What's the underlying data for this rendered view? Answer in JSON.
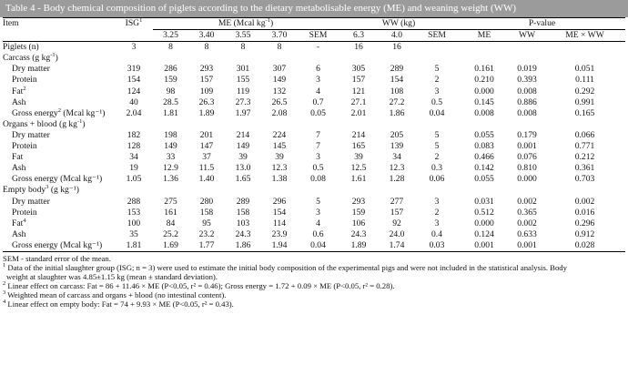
{
  "caption": "Table 4 - Body chemical composition of piglets according to the dietary metabolisable energy (ME) and weaning weight (WW)",
  "header": {
    "item": "Item",
    "isg": "ISG",
    "isg_sup": "1",
    "me_group": "ME (Mcal kg",
    "me_group_sup": "-1",
    "me_group_end": ")",
    "ww_group": "WW (kg)",
    "pvalue_group": "P-value",
    "me_levels": [
      "3.25",
      "3.40",
      "3.55",
      "3.70"
    ],
    "sem": "SEM",
    "ww_levels": [
      "6.3",
      "4.0"
    ],
    "sem2": "SEM",
    "p_me": "ME",
    "p_ww": "WW",
    "p_int": "ME × WW"
  },
  "piglets_row": [
    "Piglets (n)",
    "3",
    "8",
    "8",
    "8",
    "8",
    "-",
    "16",
    "16",
    "",
    "",
    "",
    ""
  ],
  "sections": [
    {
      "title": "Carcass (g kg",
      "title_sup": "-1",
      "title_end": ")",
      "rows": [
        {
          "label": "Dry matter",
          "sup": "",
          "label_end": "",
          "values": [
            "319",
            "286",
            "293",
            "301",
            "307",
            "6",
            "305",
            "289",
            "5",
            "0.161",
            "0.019",
            "0.051"
          ]
        },
        {
          "label": "Protein",
          "sup": "",
          "label_end": "",
          "values": [
            "154",
            "159",
            "157",
            "155",
            "149",
            "3",
            "157",
            "154",
            "2",
            "0.210",
            "0.393",
            "0.111"
          ]
        },
        {
          "label": "Fat",
          "sup": "2",
          "label_end": "",
          "values": [
            "124",
            "98",
            "109",
            "119",
            "132",
            "4",
            "121",
            "108",
            "3",
            "0.000",
            "0.008",
            "0.292"
          ]
        },
        {
          "label": "Ash",
          "sup": "",
          "label_end": "",
          "values": [
            "40",
            "28.5",
            "26.3",
            "27.3",
            "26.5",
            "0.7",
            "27.1",
            "27.2",
            "0.5",
            "0.145",
            "0.886",
            "0.991"
          ]
        },
        {
          "label": "Gross energy",
          "sup": "2",
          "label_end": " (Mcal kg⁻¹)",
          "values": [
            "2.04",
            "1.81",
            "1.89",
            "1.97",
            "2.08",
            "0.05",
            "2.01",
            "1.86",
            "0.04",
            "0.008",
            "0.008",
            "0.165"
          ]
        }
      ]
    },
    {
      "title": "Organs + blood (g kg",
      "title_sup": "-1",
      "title_end": ")",
      "rows": [
        {
          "label": "Dry matter",
          "sup": "",
          "label_end": "",
          "values": [
            "182",
            "198",
            "201",
            "214",
            "224",
            "7",
            "214",
            "205",
            "5",
            "0.055",
            "0.179",
            "0.066"
          ]
        },
        {
          "label": "Protein",
          "sup": "",
          "label_end": "",
          "values": [
            "128",
            "149",
            "147",
            "149",
            "145",
            "7",
            "165",
            "139",
            "5",
            "0.083",
            "0.001",
            "0.771"
          ]
        },
        {
          "label": "Fat",
          "sup": "",
          "label_end": "",
          "values": [
            "34",
            "33",
            "37",
            "39",
            "39",
            "3",
            "39",
            "34",
            "2",
            "0.466",
            "0.076",
            "0.212"
          ]
        },
        {
          "label": "Ash",
          "sup": "",
          "label_end": "",
          "values": [
            "19",
            "12.9",
            "11.5",
            "13.0",
            "12.3",
            "0.5",
            "12.5",
            "12.3",
            "0.3",
            "0.142",
            "0.810",
            "0.361"
          ]
        },
        {
          "label": "Gross energy (Mcal kg⁻¹)",
          "sup": "",
          "label_end": "",
          "values": [
            "1.05",
            "1.36",
            "1.40",
            "1.65",
            "1.38",
            "0.08",
            "1.61",
            "1.28",
            "0.06",
            "0.055",
            "0.000",
            "0.703"
          ]
        }
      ]
    },
    {
      "title": "Empty body",
      "title_sup": "3",
      "title_end": " (g kg⁻¹)",
      "rows": [
        {
          "label": "Dry matter",
          "sup": "",
          "label_end": "",
          "values": [
            "288",
            "275",
            "280",
            "289",
            "296",
            "5",
            "293",
            "277",
            "3",
            "0.031",
            "0.002",
            "0.002"
          ]
        },
        {
          "label": "Protein",
          "sup": "",
          "label_end": "",
          "values": [
            "153",
            "161",
            "158",
            "158",
            "154",
            "3",
            "159",
            "157",
            "2",
            "0.512",
            "0.365",
            "0.016"
          ]
        },
        {
          "label": "Fat",
          "sup": "4",
          "label_end": "",
          "values": [
            "100",
            "84",
            "95",
            "103",
            "114",
            "4",
            "106",
            "92",
            "3",
            "0.000",
            "0.002",
            "0.296"
          ]
        },
        {
          "label": "Ash",
          "sup": "",
          "label_end": "",
          "values": [
            "35",
            "25.2",
            "23.2",
            "24.3",
            "23.9",
            "0.6",
            "24.3",
            "24.0",
            "0.4",
            "0.124",
            "0.633",
            "0.912"
          ]
        },
        {
          "label": "Gross energy (Mcal kg⁻¹)",
          "sup": "",
          "label_end": "",
          "values": [
            "1.81",
            "1.69",
            "1.77",
            "1.86",
            "1.94",
            "0.04",
            "1.89",
            "1.74",
            "0.03",
            "0.001",
            "0.001",
            "0.028"
          ]
        }
      ]
    }
  ],
  "notes": {
    "sem_def": "SEM - standard error of the mean.",
    "n1a": "Data of the initial slaughter group (ISG; n = 3) were used to estimate the initial body composition of the experimental pigs and were not included in the statistical analysis. Body",
    "n1b": "weight at slaughter was 4.85±1.15 kg (mean ± standard deviation).",
    "n2": "Linear effect on carcass: Fat = 86 + 11.46 × ME (P<0.05, r² = 0.46); Gross energy = 1.72 + 0.09 × ME (P<0.05, r² = 0.28).",
    "n3": "Weighted mean of carcass and organs + blood (no intestinal content).",
    "n4": "Linear effect on empty body: Fat = 74 + 9.93 × ME (P<0.05, r² = 0.43)."
  }
}
